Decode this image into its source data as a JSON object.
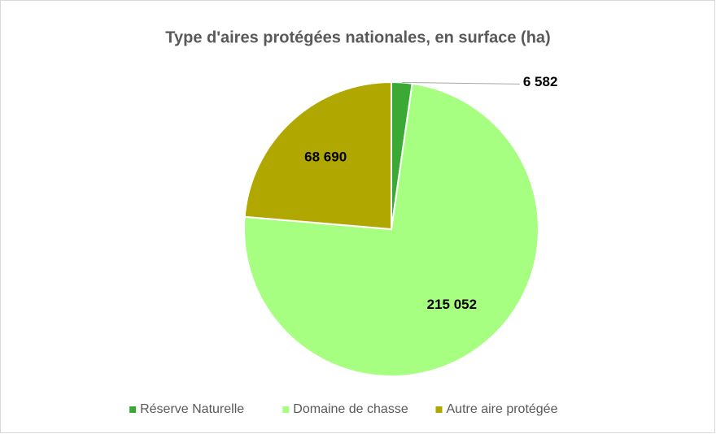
{
  "chart_data": {
    "type": "pie",
    "title": "Type d'aires protégées nationales, en surface (ha)",
    "categories": [
      "Réserve Naturelle",
      "Domaine de chasse",
      "Autre aire protégée"
    ],
    "values": [
      6582,
      215052,
      68690
    ],
    "value_labels": [
      "6 582",
      "215 052",
      "68 690"
    ],
    "colors": [
      "#3aaa35",
      "#a6ff80",
      "#b0a800"
    ],
    "legend": "bottom"
  }
}
